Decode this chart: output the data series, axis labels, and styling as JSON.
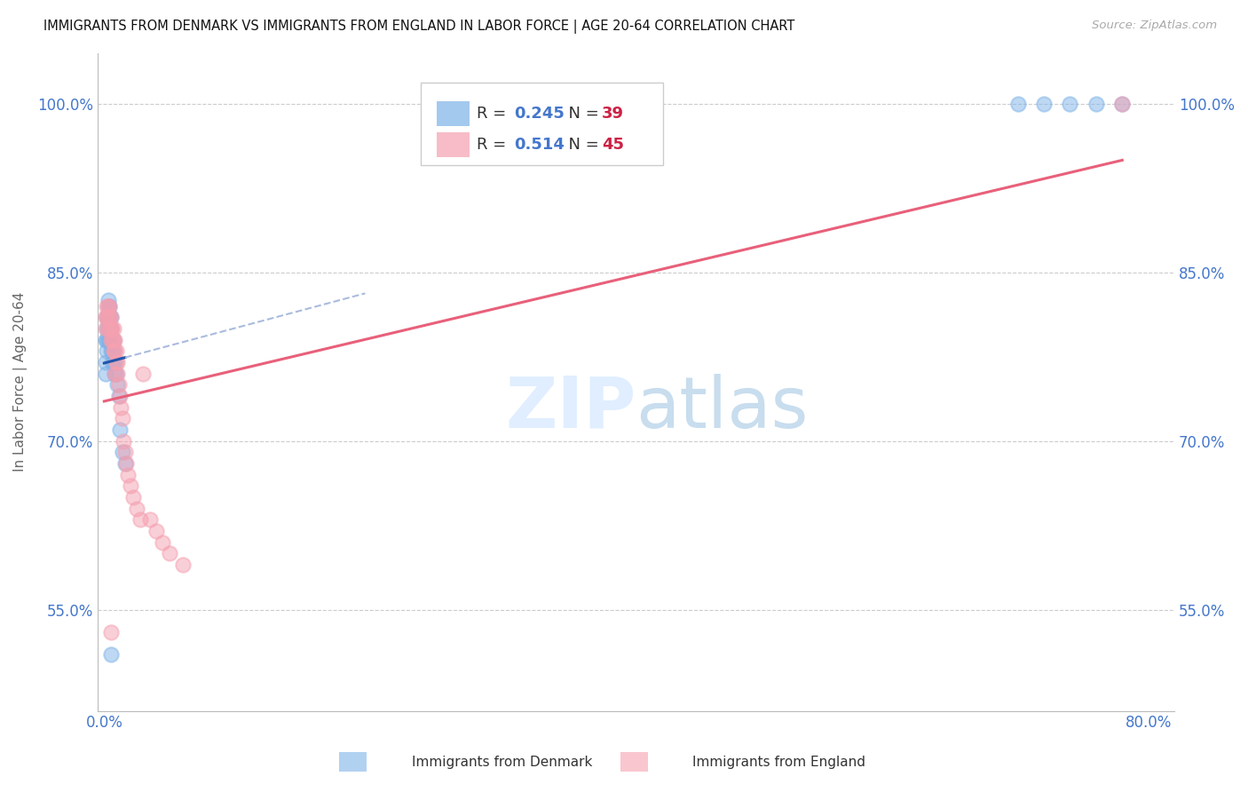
{
  "title": "IMMIGRANTS FROM DENMARK VS IMMIGRANTS FROM ENGLAND IN LABOR FORCE | AGE 20-64 CORRELATION CHART",
  "source": "Source: ZipAtlas.com",
  "ylabel": "In Labor Force | Age 20-64",
  "watermark_zip": "ZIP",
  "watermark_atlas": "atlas",
  "R_denmark": 0.245,
  "N_denmark": 39,
  "R_england": 0.514,
  "N_england": 45,
  "xlim": [
    -0.005,
    0.82
  ],
  "ylim": [
    0.46,
    1.045
  ],
  "xticks": [
    0.0,
    0.1,
    0.2,
    0.3,
    0.4,
    0.5,
    0.6,
    0.7,
    0.8
  ],
  "xticklabels": [
    "0.0%",
    "",
    "",
    "",
    "",
    "",
    "",
    "",
    "80.0%"
  ],
  "yticks": [
    0.55,
    0.7,
    0.85,
    1.0
  ],
  "yticklabels": [
    "55.0%",
    "70.0%",
    "85.0%",
    "100.0%"
  ],
  "color_denmark": "#7EB3E8",
  "color_england": "#F5A0B0",
  "trendline_denmark_color": "#2255AA",
  "trendline_england_color": "#E8607A",
  "trendline_denmark_dashed_color": "#AABBDD",
  "denmark_x": [
    0.001,
    0.001,
    0.001,
    0.002,
    0.002,
    0.002,
    0.002,
    0.003,
    0.003,
    0.003,
    0.003,
    0.003,
    0.004,
    0.004,
    0.004,
    0.004,
    0.005,
    0.005,
    0.005,
    0.005,
    0.006,
    0.006,
    0.007,
    0.007,
    0.007,
    0.008,
    0.008,
    0.009,
    0.01,
    0.011,
    0.012,
    0.014,
    0.016,
    0.7,
    0.72,
    0.74,
    0.76,
    0.78,
    0.005
  ],
  "denmark_y": [
    0.76,
    0.77,
    0.79,
    0.78,
    0.79,
    0.8,
    0.81,
    0.79,
    0.8,
    0.81,
    0.82,
    0.825,
    0.79,
    0.8,
    0.81,
    0.82,
    0.78,
    0.79,
    0.8,
    0.81,
    0.77,
    0.78,
    0.77,
    0.78,
    0.79,
    0.76,
    0.77,
    0.76,
    0.75,
    0.74,
    0.71,
    0.69,
    0.68,
    1.0,
    1.0,
    1.0,
    1.0,
    1.0,
    0.51
  ],
  "england_x": [
    0.001,
    0.001,
    0.002,
    0.002,
    0.003,
    0.003,
    0.003,
    0.004,
    0.004,
    0.004,
    0.005,
    0.005,
    0.005,
    0.006,
    0.006,
    0.007,
    0.007,
    0.007,
    0.008,
    0.008,
    0.009,
    0.009,
    0.01,
    0.01,
    0.011,
    0.012,
    0.013,
    0.014,
    0.015,
    0.016,
    0.017,
    0.018,
    0.02,
    0.022,
    0.025,
    0.028,
    0.03,
    0.035,
    0.04,
    0.045,
    0.05,
    0.06,
    0.78,
    0.005,
    0.008
  ],
  "england_y": [
    0.8,
    0.81,
    0.81,
    0.82,
    0.8,
    0.81,
    0.82,
    0.8,
    0.81,
    0.82,
    0.79,
    0.8,
    0.81,
    0.79,
    0.8,
    0.78,
    0.79,
    0.8,
    0.78,
    0.79,
    0.77,
    0.78,
    0.76,
    0.77,
    0.75,
    0.74,
    0.73,
    0.72,
    0.7,
    0.69,
    0.68,
    0.67,
    0.66,
    0.65,
    0.64,
    0.63,
    0.76,
    0.63,
    0.62,
    0.61,
    0.6,
    0.59,
    1.0,
    0.53,
    0.76
  ]
}
